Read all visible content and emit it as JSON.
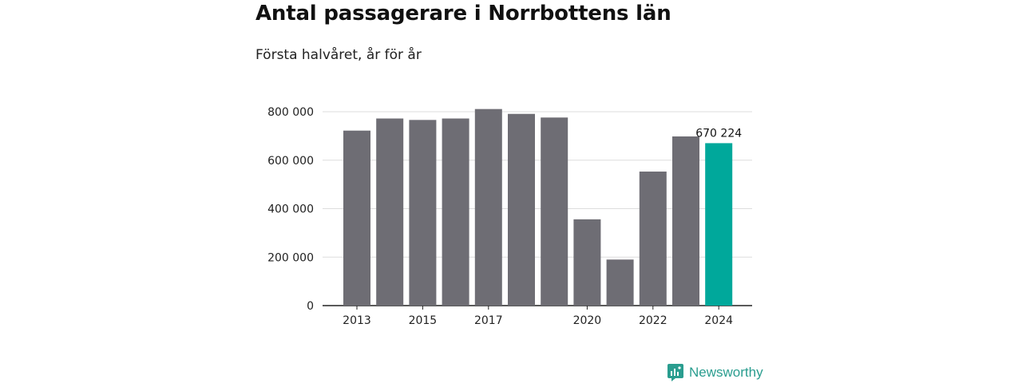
{
  "title": "Antal passagerare i Norrbottens län",
  "subtitle": "Första halvåret, år för år",
  "brand": {
    "name": "Newsworthy",
    "icon": "newsworthy-logo-icon"
  },
  "colors": {
    "bar": "#6e6d74",
    "highlight": "#00a89b",
    "grid": "#dddddd",
    "axis": "#222222",
    "brand": "#2a9d8f"
  },
  "chart_data": {
    "type": "bar",
    "categories": [
      "2013",
      "2014",
      "2015",
      "2016",
      "2017",
      "2018",
      "2019",
      "2020",
      "2021",
      "2022",
      "2023",
      "2024"
    ],
    "values": [
      722000,
      772000,
      766000,
      772000,
      811000,
      791000,
      776000,
      356000,
      190000,
      553000,
      698000,
      670224
    ],
    "x_tick_labels": [
      "2013",
      "2015",
      "2017",
      "2020",
      "2022",
      "2024"
    ],
    "y_tick_labels": [
      "0",
      "200 000",
      "400 000",
      "600 000",
      "800 000"
    ],
    "ylim": [
      0,
      800000
    ],
    "highlight_category": "2024",
    "data_labels": [
      {
        "category": "2024",
        "text": "670 224"
      }
    ],
    "grid": true,
    "legend": "none"
  }
}
